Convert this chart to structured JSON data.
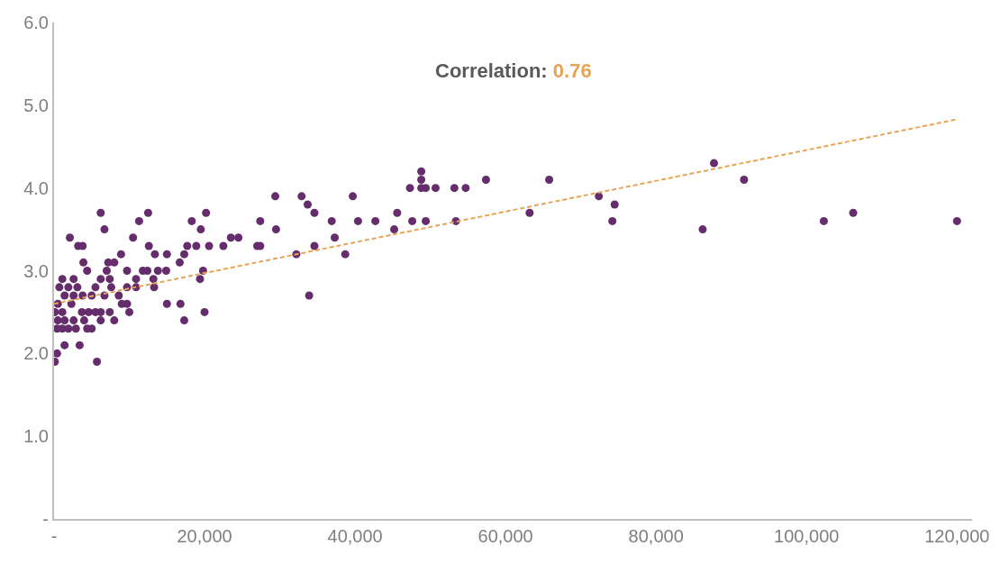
{
  "chart_data": {
    "type": "scatter",
    "annotations": [
      "Correlation:",
      "0.76"
    ],
    "xlim": [
      0,
      122000
    ],
    "ylim": [
      0,
      6
    ],
    "xticks": [
      {
        "value": 0,
        "label": "-"
      },
      {
        "value": 20000,
        "label": "20,000"
      },
      {
        "value": 40000,
        "label": "40,000"
      },
      {
        "value": 60000,
        "label": "60,000"
      },
      {
        "value": 80000,
        "label": "80,000"
      },
      {
        "value": 100000,
        "label": "100,000"
      },
      {
        "value": 120000,
        "label": "120,000"
      }
    ],
    "yticks": [
      {
        "value": 0,
        "label": "-"
      },
      {
        "value": 1,
        "label": "1.0"
      },
      {
        "value": 2,
        "label": "2.0"
      },
      {
        "value": 3,
        "label": "3.0"
      },
      {
        "value": 4,
        "label": "4.0"
      },
      {
        "value": 5,
        "label": "5.0"
      },
      {
        "value": 6,
        "label": "6.0"
      }
    ],
    "series": [
      {
        "color": "#652d6b",
        "marker": "circle",
        "x": [
          120000,
          102300,
          106200,
          63200,
          65800,
          72400,
          74500,
          74200,
          86200,
          87700,
          91700,
          18300,
          20200,
          19500,
          18900,
          20600,
          22500,
          23500,
          24500,
          27400,
          29400,
          29500,
          27000,
          27400,
          32200,
          32900,
          33700,
          34600,
          33900,
          34600,
          36900,
          37300,
          38700,
          39700,
          40400,
          42700,
          45200,
          45600,
          47600,
          47300,
          48800,
          48800,
          48800,
          49400,
          49400,
          50700,
          53200,
          54700,
          53400,
          57400,
          19400,
          20000,
          6200,
          12500,
          11300,
          6700,
          2100,
          10500,
          3200,
          3800,
          12600,
          8900,
          13400,
          15000,
          3900,
          7200,
          8000,
          4400,
          7000,
          9700,
          11800,
          12400,
          13800,
          14900,
          1100,
          2600,
          6200,
          7400,
          10900,
          13200,
          700,
          1900,
          3100,
          3800,
          5500,
          7600,
          9700,
          10900,
          13300,
          19800,
          17700,
          17300,
          16700,
          17300,
          16800,
          15000,
          100,
          1100,
          500,
          1400,
          2600,
          400,
          1100,
          1900,
          2900,
          500,
          2300,
          1400,
          2600,
          3700,
          4000,
          4600,
          5500,
          6200,
          7400,
          4400,
          5000,
          6200,
          8000,
          5000,
          6700,
          8600,
          9000,
          9700,
          10000,
          1400,
          3400,
          400,
          100,
          5700
        ],
        "values": [
          3.6,
          3.6,
          3.7,
          3.7,
          4.1,
          3.9,
          3.8,
          3.6,
          3.5,
          4.3,
          4.1,
          3.6,
          3.7,
          3.5,
          3.3,
          3.3,
          3.3,
          3.4,
          3.4,
          3.6,
          3.9,
          3.5,
          3.3,
          3.3,
          3.2,
          3.9,
          3.8,
          3.7,
          2.7,
          3.3,
          3.6,
          3.4,
          3.2,
          3.9,
          3.6,
          3.6,
          3.5,
          3.7,
          3.6,
          4.0,
          4.2,
          4.1,
          4.0,
          4.0,
          3.6,
          4.0,
          4.0,
          4.0,
          3.6,
          4.1,
          2.9,
          2.5,
          3.7,
          3.7,
          3.6,
          3.5,
          3.4,
          3.4,
          3.3,
          3.3,
          3.3,
          3.2,
          3.2,
          3.2,
          3.1,
          3.1,
          3.1,
          3.0,
          3.0,
          3.0,
          3.0,
          3.0,
          3.0,
          3.0,
          2.9,
          2.9,
          2.9,
          2.9,
          2.9,
          2.9,
          2.8,
          2.8,
          2.8,
          2.7,
          2.8,
          2.8,
          2.8,
          2.8,
          2.8,
          3.0,
          3.3,
          3.2,
          3.1,
          2.4,
          2.6,
          2.6,
          2.5,
          2.5,
          2.4,
          2.4,
          2.4,
          2.3,
          2.3,
          2.3,
          2.3,
          2.6,
          2.6,
          2.7,
          2.7,
          2.5,
          2.4,
          2.5,
          2.5,
          2.5,
          2.5,
          2.3,
          2.3,
          2.4,
          2.4,
          2.7,
          2.7,
          2.7,
          2.6,
          2.6,
          2.5,
          2.1,
          2.1,
          2.0,
          1.9,
          1.9
        ]
      },
      {
        "type": "line",
        "color": "#e8a456",
        "line_style": "dashed",
        "marker": "none",
        "x": [
          0,
          120000
        ],
        "values": [
          2.6,
          4.83
        ]
      }
    ]
  }
}
